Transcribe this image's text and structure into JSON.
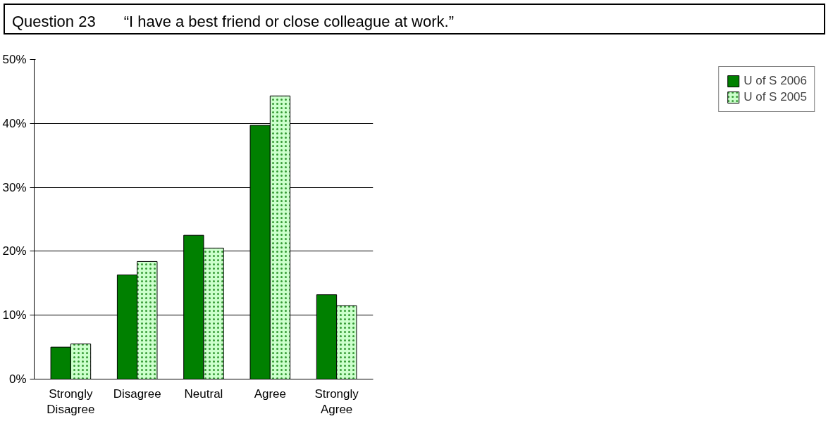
{
  "chart_data": {
    "type": "bar",
    "title": "Question 23",
    "subtitle": "“I have a best friend or close colleague at work.”",
    "categories": [
      "Strongly Disagree",
      "Disagree",
      "Neutral",
      "Agree",
      "Strongly Agree"
    ],
    "series": [
      {
        "name": "U of S 2006",
        "color": "#008000",
        "values": [
          5,
          16.3,
          22.5,
          39.7,
          13.2
        ]
      },
      {
        "name": "U of S 2005",
        "color": "#ccffcc",
        "values": [
          5.5,
          18.4,
          20.5,
          44.3,
          11.5
        ]
      }
    ],
    "ylim": [
      0,
      50
    ],
    "yticks": [
      {
        "value": 0,
        "label": "0%"
      },
      {
        "value": 10,
        "label": "10%"
      },
      {
        "value": 20,
        "label": "20%"
      },
      {
        "value": 30,
        "label": "30%"
      },
      {
        "value": 40,
        "label": "40%"
      },
      {
        "value": 50,
        "label": "50%"
      }
    ],
    "grid": "y",
    "legend": "right"
  }
}
